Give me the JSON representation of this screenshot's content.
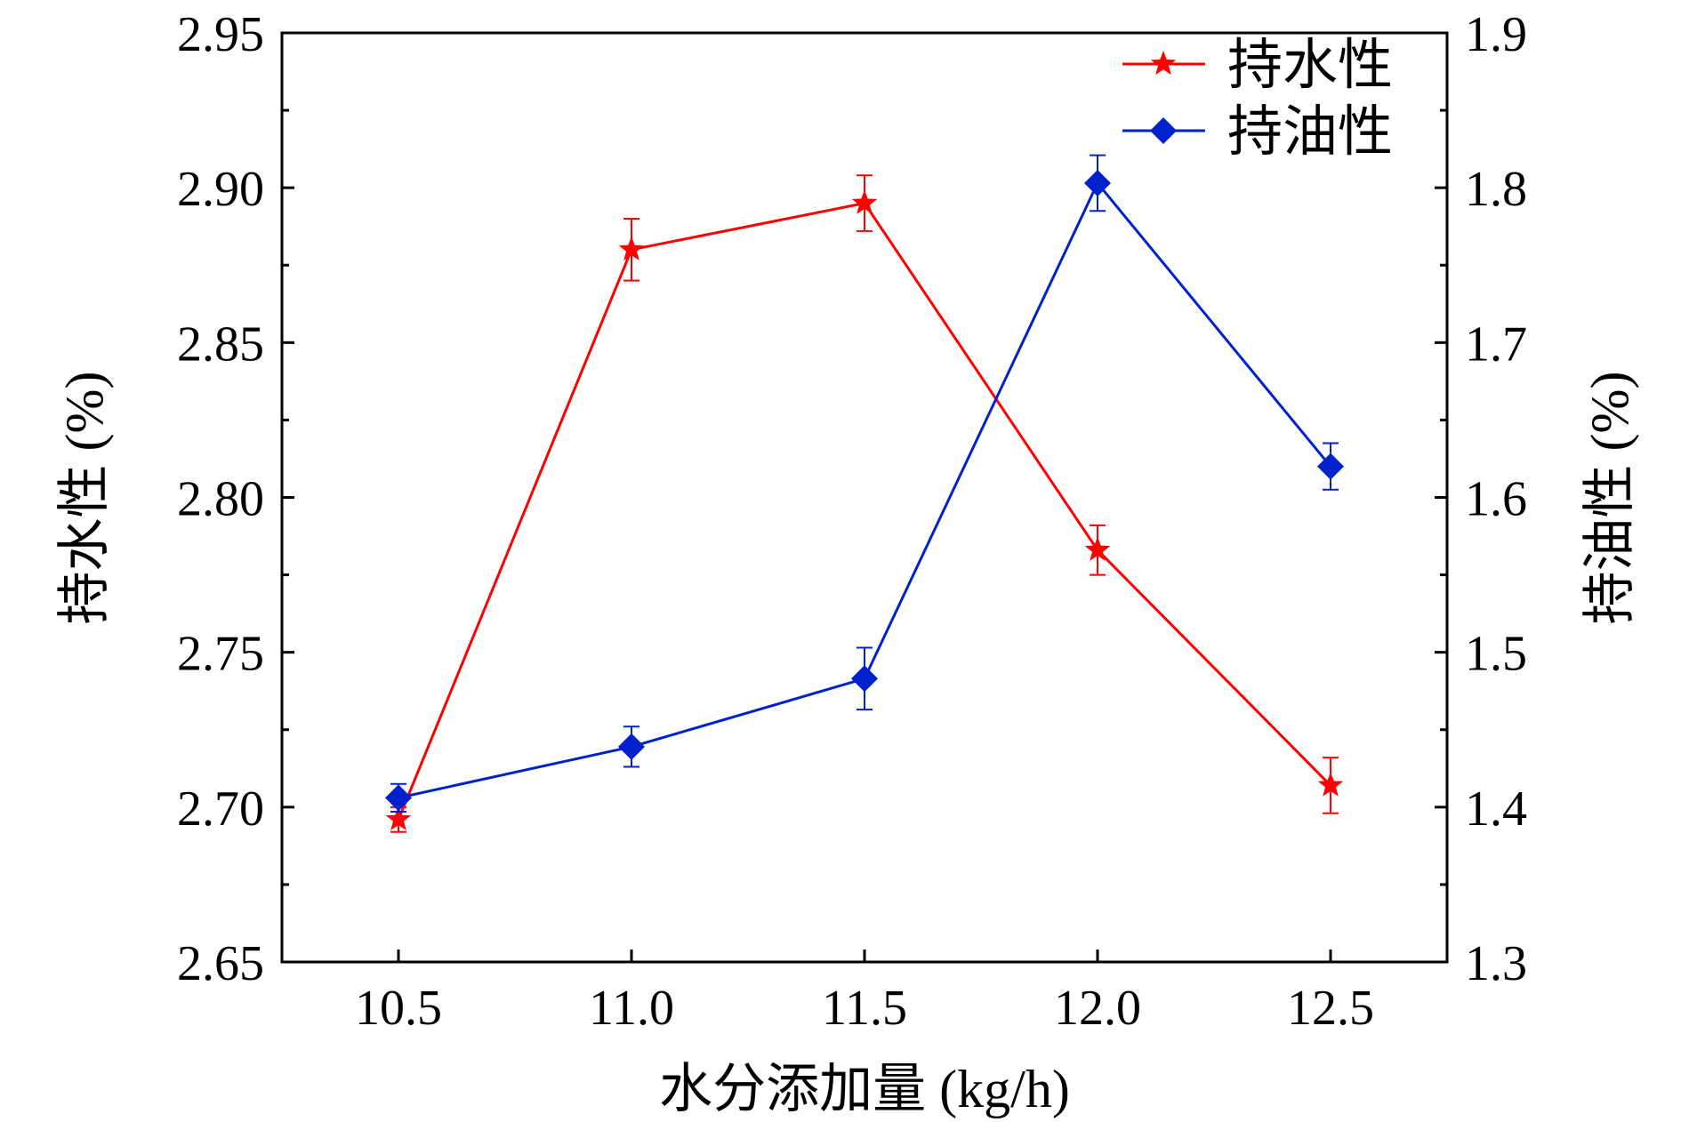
{
  "chart_data": {
    "type": "line",
    "xlabel": "水分添加量 (kg/h)",
    "ylabel_left": "持水性 (%)",
    "ylabel_right": "持油性 (%)",
    "x": [
      10.5,
      11.0,
      11.5,
      12.0,
      12.5
    ],
    "x_ticks": [
      "10.5",
      "11.0",
      "11.5",
      "12.0",
      "12.5"
    ],
    "xlim": [
      10.25,
      12.75
    ],
    "ylim_left": [
      2.65,
      2.95
    ],
    "ylim_right": [
      1.3,
      1.9
    ],
    "y_ticks_left": [
      "2.65",
      "2.70",
      "2.75",
      "2.80",
      "2.85",
      "2.90",
      "2.95"
    ],
    "y_ticks_right": [
      "1.3",
      "1.4",
      "1.5",
      "1.6",
      "1.7",
      "1.8",
      "1.9"
    ],
    "legend_position": "top-right",
    "series": [
      {
        "name": "持水性",
        "axis": "left",
        "color": "#ff0000",
        "marker": "star",
        "values": [
          2.696,
          2.88,
          2.895,
          2.783,
          2.707
        ],
        "errors": [
          0.004,
          0.01,
          0.009,
          0.008,
          0.009
        ]
      },
      {
        "name": "持油性",
        "axis": "right",
        "color": "#0022cc",
        "marker": "diamond",
        "values": [
          1.406,
          1.439,
          1.483,
          1.803,
          1.62
        ],
        "errors": [
          0.009,
          0.013,
          0.02,
          0.018,
          0.015
        ]
      }
    ]
  }
}
